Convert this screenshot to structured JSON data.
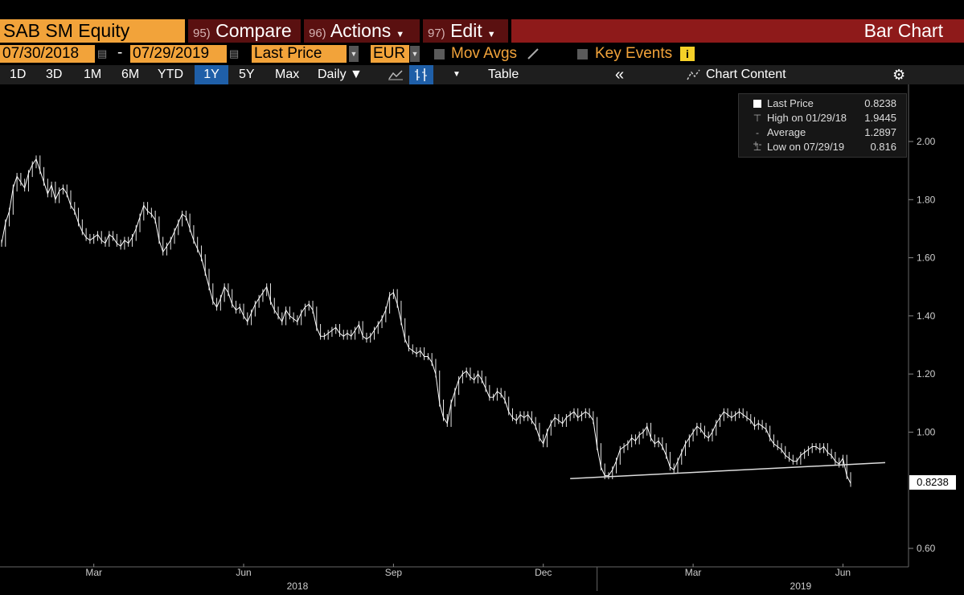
{
  "header": {
    "ticker": "SAB SM Equity",
    "compare_num": "95)",
    "compare_label": "Compare",
    "actions_num": "96)",
    "actions_label": "Actions",
    "edit_num": "97)",
    "edit_label": "Edit",
    "chart_title": "Bar Chart"
  },
  "controls": {
    "start_date": "07/30/2018",
    "end_date": "07/29/2019",
    "dash": "-",
    "field": "Last Price",
    "currency": "EUR",
    "mov_avgs": "Mov Avgs",
    "key_events": "Key Events",
    "info_icon": "i"
  },
  "toolbar": {
    "periods": [
      "1D",
      "3D",
      "1M",
      "6M",
      "YTD",
      "1Y",
      "5Y",
      "Max"
    ],
    "selected_period": "1Y",
    "frequency": "Daily ▼",
    "table_label": "Table",
    "collapse_label": "«",
    "chart_content_label": "Chart Content",
    "gear_glyph": "⚙"
  },
  "legend": {
    "last_price_label": "Last Price",
    "last_price_value": "0.8238",
    "high_label": "High on 01/29/18",
    "high_value": "1.9445",
    "average_label": "Average",
    "average_value": "1.2897",
    "low_label": "Low on 07/29/19",
    "low_value": "0.816"
  },
  "last_price_tag": "0.8238",
  "colors": {
    "accent_orange": "#f2a33a",
    "title_red": "#8e1a1a",
    "button_dark_red": "#5a1010",
    "selected_blue": "#1f5fa8",
    "price_line": "#ffffff"
  },
  "chart_data": {
    "type": "line",
    "ylim": [
      0.6,
      2.1
    ],
    "y_ticks": [
      "0.60",
      "1.00",
      "1.20",
      "1.40",
      "1.60",
      "1.80",
      "2.00"
    ],
    "x_ticks": [
      "Mar",
      "Jun",
      "Sep",
      "Dec",
      "Mar",
      "Jun"
    ],
    "x_ticks_index": [
      24,
      63,
      102,
      141,
      180,
      219
    ],
    "year_labels": [
      "2018",
      "2019"
    ],
    "year_labels_index": [
      77,
      208
    ],
    "year_divider_index": [
      155
    ],
    "series": [
      {
        "values": [
          1.65,
          1.72,
          1.76,
          1.84,
          1.88,
          1.86,
          1.84,
          1.89,
          1.92,
          1.94,
          1.9,
          1.86,
          1.82,
          1.85,
          1.8,
          1.83,
          1.84,
          1.82,
          1.78,
          1.76,
          1.72,
          1.69,
          1.67,
          1.66,
          1.67,
          1.68,
          1.66,
          1.65,
          1.68,
          1.67,
          1.65,
          1.64,
          1.66,
          1.65,
          1.67,
          1.7,
          1.74,
          1.78,
          1.76,
          1.75,
          1.73,
          1.66,
          1.62,
          1.64,
          1.66,
          1.69,
          1.72,
          1.75,
          1.74,
          1.7,
          1.66,
          1.63,
          1.6,
          1.55,
          1.5,
          1.45,
          1.43,
          1.46,
          1.5,
          1.48,
          1.44,
          1.42,
          1.43,
          1.4,
          1.38,
          1.41,
          1.44,
          1.46,
          1.48,
          1.5,
          1.45,
          1.42,
          1.4,
          1.38,
          1.42,
          1.4,
          1.39,
          1.38,
          1.41,
          1.43,
          1.44,
          1.42,
          1.36,
          1.33,
          1.33,
          1.34,
          1.35,
          1.36,
          1.34,
          1.33,
          1.34,
          1.33,
          1.35,
          1.37,
          1.33,
          1.32,
          1.33,
          1.35,
          1.37,
          1.39,
          1.42,
          1.47,
          1.48,
          1.44,
          1.38,
          1.32,
          1.29,
          1.28,
          1.27,
          1.28,
          1.26,
          1.26,
          1.24,
          1.2,
          1.1,
          1.05,
          1.03,
          1.1,
          1.14,
          1.18,
          1.2,
          1.21,
          1.19,
          1.18,
          1.2,
          1.18,
          1.15,
          1.12,
          1.12,
          1.14,
          1.13,
          1.11,
          1.07,
          1.05,
          1.04,
          1.06,
          1.05,
          1.06,
          1.04,
          1.02,
          0.98,
          0.96,
          1.0,
          1.03,
          1.05,
          1.04,
          1.03,
          1.05,
          1.06,
          1.07,
          1.05,
          1.06,
          1.07,
          1.06,
          1.04,
          0.95,
          0.88,
          0.85,
          0.85,
          0.87,
          0.9,
          0.94,
          0.95,
          0.96,
          0.98,
          0.97,
          0.99,
          1.0,
          1.02,
          0.98,
          0.96,
          0.97,
          0.95,
          0.92,
          0.88,
          0.87,
          0.9,
          0.93,
          0.96,
          0.98,
          1.0,
          1.02,
          1.01,
          0.99,
          0.98,
          1.0,
          1.03,
          1.05,
          1.07,
          1.06,
          1.05,
          1.06,
          1.07,
          1.06,
          1.05,
          1.04,
          1.02,
          1.03,
          1.02,
          1.01,
          0.98,
          0.96,
          0.95,
          0.94,
          0.92,
          0.91,
          0.9,
          0.9,
          0.92,
          0.93,
          0.94,
          0.95,
          0.95,
          0.94,
          0.95,
          0.93,
          0.92,
          0.9,
          0.89,
          0.91,
          0.85,
          0.8238
        ]
      }
    ],
    "trendline_index": [
      148,
      230
    ],
    "trendline_values": [
      0.84,
      0.895
    ],
    "grid": false
  }
}
